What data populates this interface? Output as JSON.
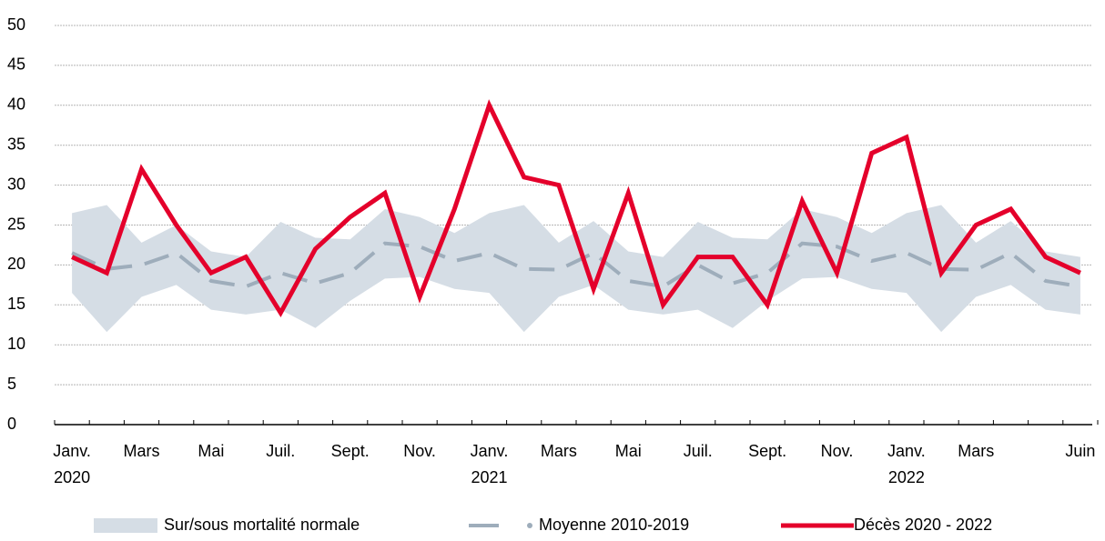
{
  "chart_data": {
    "type": "line",
    "categories": [
      "Janv.\n2020",
      null,
      "Mars",
      null,
      "Mai",
      null,
      "Juil.",
      null,
      "Sept.",
      null,
      "Nov.",
      null,
      "Janv.\n2021",
      null,
      "Mars",
      null,
      "Mai",
      null,
      "Juil.",
      null,
      "Sept.",
      null,
      "Nov.",
      null,
      "Janv.\n2022",
      null,
      "Mars",
      null,
      null,
      "Juin"
    ],
    "band": {
      "name": "Sur/sous mortalité normale",
      "color": "#d5dde5",
      "high": [
        26.5,
        27.5,
        22.8,
        25,
        21.7,
        21,
        25.4,
        23.4,
        23.2,
        27,
        26,
        24,
        26.5,
        27.5,
        22.8,
        25.5,
        21.7,
        21,
        25.4,
        23.4,
        23.2,
        27,
        26,
        24,
        26.5,
        27.5,
        22.8,
        25.5,
        21.7,
        21
      ],
      "low": [
        16.5,
        11.6,
        16,
        17.5,
        14.4,
        13.8,
        14.4,
        12.1,
        15.5,
        18.3,
        18.5,
        17,
        16.5,
        11.6,
        16,
        17.5,
        14.4,
        13.8,
        14.4,
        12.1,
        15.5,
        18.3,
        18.5,
        17,
        16.5,
        11.6,
        16,
        17.5,
        14.4,
        13.8
      ]
    },
    "series": [
      {
        "name": "Moyenne 2010-2019",
        "color": "#9eadbb",
        "dashed": true,
        "values": [
          21.5,
          19.5,
          20,
          21.5,
          18,
          17.3,
          19,
          17.7,
          19,
          22.7,
          22.3,
          20.5,
          21.5,
          19.5,
          19.4,
          21.5,
          18,
          17.3,
          20,
          17.7,
          19,
          22.7,
          22.3,
          20.5,
          21.5,
          19.5,
          19.4,
          21.5,
          18,
          17.3
        ]
      },
      {
        "name": "Décès 2020 - 2022",
        "color": "#e4002b",
        "values": [
          21,
          19,
          32,
          25,
          19,
          21,
          14,
          22,
          26,
          29,
          16,
          27,
          40,
          31,
          30,
          17,
          29,
          15,
          21,
          21,
          15,
          28,
          19,
          34,
          36,
          19,
          25,
          27,
          21,
          19
        ]
      }
    ],
    "ylim": [
      0,
      50
    ],
    "yticks": [
      0,
      5,
      10,
      15,
      20,
      25,
      30,
      35,
      40,
      45,
      50
    ],
    "grid": true
  }
}
